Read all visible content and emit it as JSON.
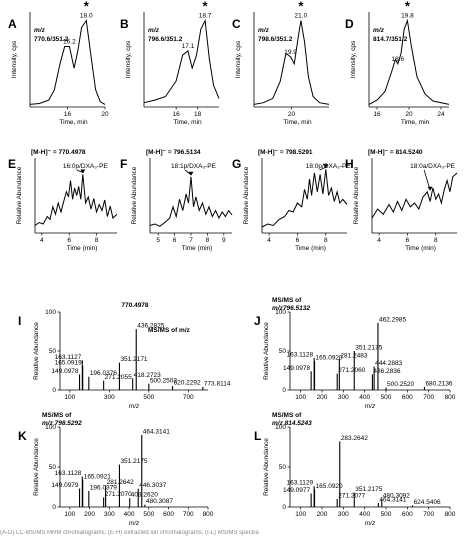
{
  "chart_data": [
    {
      "panel": "A",
      "type": "line",
      "ylabel": "Intensity, cps",
      "xlabel": "Time, min",
      "title": "m/z 770.6/351.2",
      "title_parts": [
        "m/z",
        "770.6/351.2"
      ],
      "xlim": [
        12,
        20
      ],
      "ylim": [
        0,
        1.1
      ],
      "xticks": [
        16,
        20
      ],
      "x": [
        12,
        13,
        14,
        14.6,
        15.2,
        15.7,
        16.2,
        16.7,
        17.1,
        17.5,
        18.0,
        18.5,
        19.0,
        19.5,
        20
      ],
      "y": [
        0.03,
        0.04,
        0.08,
        0.2,
        0.5,
        0.7,
        0.7,
        0.45,
        0.65,
        0.92,
        1.0,
        0.6,
        0.2,
        0.06,
        0.03
      ],
      "peak_labels": [
        {
          "x": 16.2,
          "y": 0.7,
          "text": "16.2",
          "star": false
        },
        {
          "x": 18.0,
          "y": 1.0,
          "text": "18.0",
          "star": true
        }
      ]
    },
    {
      "panel": "B",
      "type": "line",
      "ylabel": "Intensity, cps",
      "xlabel": "Time, min",
      "title": "m/z 796.6/351.2",
      "title_parts": [
        "m/z",
        "796.6/351.2"
      ],
      "xlim": [
        13,
        20
      ],
      "ylim": [
        0,
        1.1
      ],
      "xticks": [
        16,
        18
      ],
      "x": [
        13,
        14,
        15,
        16,
        16.6,
        17.1,
        17.5,
        17.9,
        18.3,
        18.7,
        19.1,
        19.5,
        20
      ],
      "y": [
        0.05,
        0.08,
        0.12,
        0.3,
        0.6,
        0.65,
        0.45,
        0.6,
        0.9,
        1.0,
        0.55,
        0.25,
        0.1
      ],
      "peak_labels": [
        {
          "x": 17.1,
          "y": 0.65,
          "text": "17.1",
          "star": false
        },
        {
          "x": 18.7,
          "y": 1.0,
          "text": "18.7",
          "star": true
        }
      ]
    },
    {
      "panel": "C",
      "type": "line",
      "ylabel": "Intensity, cps",
      "xlabel": "Time, min",
      "title": "m/z 798.6/351.2",
      "title_parts": [
        "m/z",
        "798.6/351.2"
      ],
      "xlim": [
        16,
        24
      ],
      "ylim": [
        0,
        1.1
      ],
      "xticks": [
        20
      ],
      "x": [
        16,
        17,
        18,
        18.8,
        19.4,
        19.9,
        20.3,
        20.7,
        21.0,
        21.4,
        21.8,
        22.3,
        23,
        24
      ],
      "y": [
        0.03,
        0.05,
        0.1,
        0.3,
        0.62,
        0.58,
        0.5,
        0.8,
        1.0,
        0.75,
        0.35,
        0.12,
        0.05,
        0.03
      ],
      "peak_labels": [
        {
          "x": 19.9,
          "y": 0.58,
          "text": "19.9",
          "star": false
        },
        {
          "x": 21.0,
          "y": 1.0,
          "text": "21.0",
          "star": true
        }
      ]
    },
    {
      "panel": "D",
      "type": "line",
      "ylabel": "Intensity, cps",
      "xlabel": "Time, min",
      "title": "m/z 814.7/351.2",
      "title_parts": [
        "m/z",
        "814.7/351.2"
      ],
      "xlim": [
        15,
        25
      ],
      "ylim": [
        0,
        1.1
      ],
      "xticks": [
        16,
        20,
        24
      ],
      "x": [
        15,
        16,
        17,
        17.8,
        18.3,
        18.6,
        19.0,
        19.4,
        19.8,
        20.3,
        21,
        22,
        23,
        25
      ],
      "y": [
        0.03,
        0.08,
        0.18,
        0.4,
        0.55,
        0.5,
        0.62,
        0.9,
        1.0,
        0.7,
        0.35,
        0.15,
        0.07,
        0.03
      ],
      "peak_labels": [
        {
          "x": 18.6,
          "y": 0.5,
          "text": "18.6",
          "star": false
        },
        {
          "x": 19.8,
          "y": 1.0,
          "text": "19.8",
          "star": true
        }
      ]
    },
    {
      "panel": "E",
      "type": "line",
      "title": "[M-H]⁻ = 770.4978",
      "ylabel": "Relative Abundance",
      "xlabel": "Time (min)",
      "xlim": [
        3.5,
        9.5
      ],
      "ylim": [
        0,
        100
      ],
      "xticks": [
        4,
        6,
        8
      ],
      "x": [
        3.5,
        3.8,
        4.1,
        4.4,
        4.6,
        4.8,
        5.0,
        5.2,
        5.4,
        5.6,
        5.8,
        5.95,
        6.1,
        6.25,
        6.4,
        6.55,
        6.7,
        6.85,
        7.0,
        7.2,
        7.4,
        7.6,
        7.8,
        8.0,
        8.2,
        8.4,
        8.6,
        8.8,
        9.0,
        9.2,
        9.5
      ],
      "y": [
        10,
        14,
        12,
        22,
        18,
        35,
        25,
        40,
        28,
        42,
        55,
        48,
        70,
        45,
        60,
        50,
        62,
        45,
        78,
        40,
        48,
        32,
        46,
        28,
        38,
        30,
        44,
        22,
        36,
        20,
        25
      ],
      "annotation": "16:0p/DXA₃-PE",
      "arrow_target": [
        7.0,
        78
      ]
    },
    {
      "panel": "F",
      "type": "line",
      "title": "[M-H]⁻ = 796.5134",
      "ylabel": "Relative Abundance",
      "xlabel": "Time (min)",
      "xlim": [
        4.5,
        9.5
      ],
      "ylim": [
        0,
        100
      ],
      "xticks": [
        5,
        6,
        7,
        8,
        9
      ],
      "x": [
        4.5,
        4.8,
        5.1,
        5.4,
        5.7,
        5.9,
        6.1,
        6.3,
        6.5,
        6.7,
        6.85,
        7.0,
        7.15,
        7.3,
        7.5,
        7.7,
        7.9,
        8.1,
        8.3,
        8.5,
        8.7,
        8.9,
        9.1,
        9.3,
        9.5
      ],
      "y": [
        10,
        12,
        9,
        14,
        20,
        35,
        22,
        45,
        30,
        52,
        40,
        75,
        35,
        48,
        30,
        40,
        25,
        35,
        22,
        30,
        20,
        28,
        22,
        30,
        24
      ],
      "annotation": "18:1p/DXA₃-PE",
      "arrow_target": [
        7.0,
        75
      ]
    },
    {
      "panel": "G",
      "type": "line",
      "title": "[M-H]⁻ = 798.5291",
      "ylabel": "Relative Abundance",
      "xlabel": "Time (min)",
      "xlim": [
        3.5,
        9.5
      ],
      "ylim": [
        0,
        100
      ],
      "xticks": [
        4,
        6,
        8
      ],
      "x": [
        3.5,
        3.9,
        4.3,
        4.7,
        5.1,
        5.4,
        5.7,
        6.0,
        6.3,
        6.5,
        6.7,
        6.85,
        7.0,
        7.2,
        7.4,
        7.6,
        7.8,
        8.0,
        8.2,
        8.4,
        8.6,
        8.8,
        9.0,
        9.2,
        9.5
      ],
      "y": [
        8,
        12,
        10,
        18,
        22,
        30,
        28,
        40,
        35,
        58,
        45,
        72,
        50,
        80,
        55,
        78,
        52,
        85,
        50,
        60,
        42,
        55,
        40,
        45,
        38
      ],
      "annotation": "18:0p/DXA₃-PE",
      "arrow_target": [
        8.0,
        85
      ]
    },
    {
      "panel": "H",
      "type": "line",
      "title": "[M-H]⁻ = 814.5240",
      "ylabel": "Relative Abundance",
      "xlabel": "Time (min)",
      "xlim": [
        3.5,
        9.5
      ],
      "ylim": [
        0,
        100
      ],
      "xticks": [
        4,
        6,
        8
      ],
      "x": [
        3.5,
        3.9,
        4.3,
        4.7,
        5.0,
        5.3,
        5.6,
        5.9,
        6.2,
        6.5,
        6.8,
        7.1,
        7.4,
        7.6,
        7.8,
        8.0,
        8.2,
        8.4,
        8.6,
        8.8,
        9.0,
        9.2,
        9.5
      ],
      "y": [
        20,
        32,
        25,
        38,
        28,
        42,
        30,
        45,
        35,
        40,
        32,
        48,
        55,
        42,
        60,
        45,
        52,
        40,
        58,
        70,
        55,
        75,
        80
      ],
      "annotation": "18:0a/DXA₃-PE",
      "arrow_target": [
        7.6,
        55
      ]
    },
    {
      "panel": "I",
      "type": "bar",
      "title": "770.4978",
      "subtitle": "MS/MS of m/z",
      "ylabel": "Relative Abundance",
      "xlabel": "m/z",
      "xlim": [
        50,
        800
      ],
      "ylim": [
        0,
        100
      ],
      "xticks": [
        100,
        300,
        500,
        700
      ],
      "yticks": [
        0,
        50,
        100
      ],
      "x": [
        163.1127,
        165.0919,
        149.0978,
        196.0376,
        271.2055,
        351.2171,
        436.2825,
        418.2723,
        500.2503,
        620.2292,
        773.8114
      ],
      "y": [
        38,
        31,
        20,
        17,
        12,
        35,
        78,
        15,
        8,
        5,
        4
      ],
      "labels": [
        "163.1127",
        "165.0919",
        "149.0978",
        "196.0376",
        "271.2055",
        "351.2171",
        "436.2825",
        "418.2723",
        "500.2503",
        "620.2292",
        "773.8114"
      ],
      "label_side": [
        "left",
        "left",
        "left",
        "right",
        "right",
        "right",
        "right",
        "right",
        "right",
        "right",
        "right"
      ]
    },
    {
      "panel": "J",
      "type": "bar",
      "title": "MS/MS of",
      "subtitle": "m/z796.5132",
      "ylabel": "Relative Abundance",
      "xlabel": "m/z",
      "xlim": [
        50,
        800
      ],
      "ylim": [
        0,
        100
      ],
      "xticks": [
        100,
        200,
        300,
        400,
        500,
        600,
        700,
        800
      ],
      "yticks": [
        0,
        50,
        100
      ],
      "x": [
        149.0978,
        165.092,
        163.1128,
        271.206,
        281.2483,
        351.2175,
        444.2883,
        436.2836,
        462.2985,
        500.252,
        680.2136
      ],
      "y": [
        24,
        37,
        41,
        21,
        40,
        50,
        30,
        20,
        86,
        3,
        4
      ],
      "labels": [
        "149.0978",
        "165.0920",
        "163.1128",
        "271.2060",
        "281.2483",
        "351.2175",
        "444.2883",
        "436.2836",
        "462.2985",
        "500.2520",
        "680.2136"
      ],
      "label_side": [
        "left",
        "right",
        "left",
        "right",
        "right",
        "right",
        "right",
        "right",
        "right",
        "right",
        "right"
      ]
    },
    {
      "panel": "K",
      "type": "bar",
      "title": "MS/MS of",
      "subtitle": "m/z 798.5292",
      "ylabel": "Relative Abundance",
      "xlabel": "m/z",
      "xlim": [
        50,
        800
      ],
      "ylim": [
        0,
        100
      ],
      "xticks": [
        100,
        200,
        300,
        400,
        500,
        600,
        700,
        800
      ],
      "yticks": [
        0,
        50,
        100
      ],
      "x": [
        163.1128,
        165.0921,
        149.0979,
        196.0379,
        281.2642,
        271.207,
        351.2175,
        446.3037,
        403.262,
        464.3141,
        480.3087
      ],
      "y": [
        38,
        34,
        23,
        20,
        27,
        12,
        53,
        23,
        11,
        90,
        3
      ],
      "labels": [
        "163.1128",
        "165.0921",
        "149.0979",
        "196.0379",
        "281.2642",
        "271.2070",
        "351.2175",
        "446.3037",
        "403.2620",
        "464.3141",
        "480.3087"
      ],
      "label_side": [
        "left",
        "right",
        "left",
        "right",
        "right",
        "right",
        "right",
        "right",
        "right",
        "right",
        "right"
      ]
    },
    {
      "panel": "L",
      "type": "bar",
      "title": "MS/MS of",
      "subtitle": "m/z 814.5243",
      "ylabel": "Relative Abundance",
      "xlabel": "m/z",
      "xlim": [
        50,
        800
      ],
      "ylim": [
        0,
        100
      ],
      "xticks": [
        100,
        200,
        300,
        400,
        500,
        600,
        700,
        800
      ],
      "yticks": [
        0,
        50,
        100
      ],
      "x": [
        163.1129,
        165.092,
        149.0977,
        271.2077,
        283.2642,
        351.2175,
        464.3141,
        480.3092,
        624.5406
      ],
      "y": [
        26,
        22,
        17,
        10,
        82,
        18,
        5,
        10,
        2
      ],
      "labels": [
        "163.1129",
        "165.0920",
        "149.0977",
        "271.2077",
        "283.2642",
        "351.2175",
        "464.3141",
        "480.3092",
        "624.5406"
      ],
      "label_side": [
        "left",
        "right",
        "left",
        "right",
        "right",
        "right",
        "right",
        "right",
        "right"
      ]
    }
  ],
  "caption_fragment": "(A-D) LC-MS/MS MRM chromatograms; (E-H) extracted ion chromatograms; (I-L) MS/MS spectra"
}
